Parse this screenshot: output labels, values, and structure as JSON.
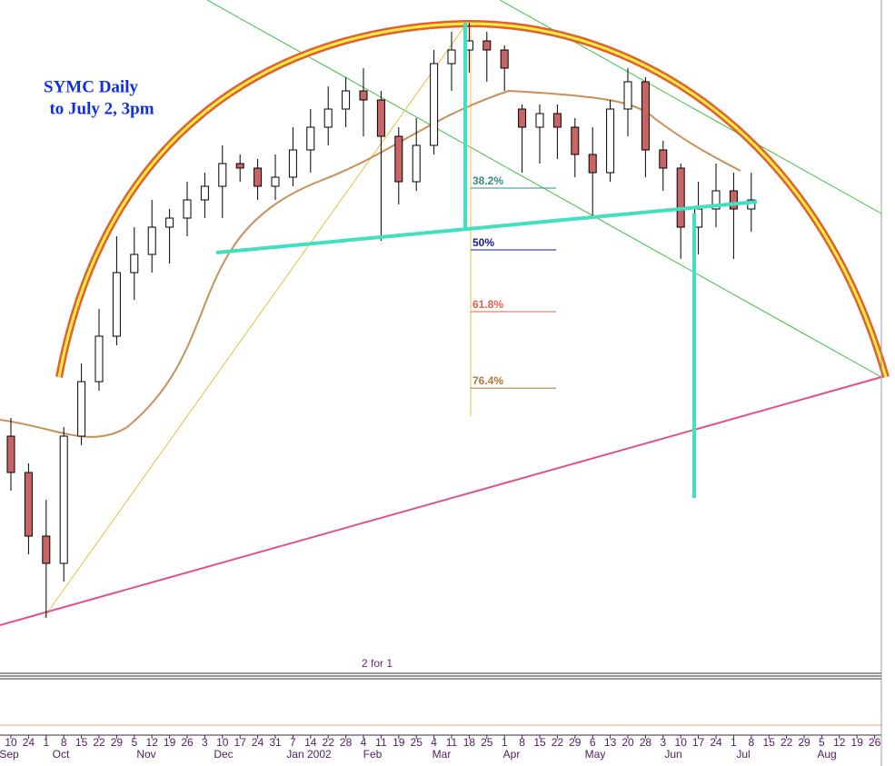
{
  "chart_data": {
    "type": "candlestick",
    "title": "SYMC Daily",
    "subtitle": "to July 2, 3pm",
    "annotation": "2 for 1",
    "ylim": [
      10,
      45
    ],
    "up_color": "#ffffff",
    "down_color": "#c86464",
    "open": [
      21,
      19,
      15.5,
      14,
      21,
      24,
      26.5,
      30,
      31,
      32.5,
      33,
      34,
      34.75,
      36,
      35.75,
      34.75,
      35.25,
      36.75,
      38,
      39,
      40,
      39.5,
      37.5,
      35,
      37,
      41.5,
      42.25,
      42.75,
      42.25,
      39,
      38,
      38.75,
      38,
      36.5,
      35.5,
      39,
      40.5,
      36.75,
      35.75,
      32.5,
      33.5,
      34.5,
      33.5
    ],
    "high": [
      22,
      19.5,
      17.5,
      21.5,
      25,
      28,
      32,
      32.5,
      34,
      33.5,
      35,
      35.5,
      37,
      36.5,
      36.25,
      36.5,
      38,
      39,
      40.25,
      40.75,
      41.25,
      40,
      38,
      38.5,
      42.25,
      43.25,
      43.75,
      43.25,
      42.5,
      39.25,
      39.25,
      39.25,
      38.5,
      38,
      39.5,
      41.25,
      40.75,
      37.25,
      36,
      35,
      36,
      35.5,
      35.5
    ],
    "low": [
      18,
      14.5,
      11,
      13,
      20.5,
      23.5,
      26,
      28.5,
      30,
      30.5,
      32,
      33,
      33,
      35,
      34,
      34,
      34.75,
      35.5,
      37,
      38,
      37.5,
      31.75,
      33.75,
      34.5,
      36.5,
      40,
      41,
      40.5,
      40,
      35.5,
      36,
      36.25,
      35.25,
      33,
      35,
      37.5,
      35.25,
      34.5,
      30.75,
      31,
      32.5,
      30.75,
      32.25
    ],
    "close": [
      19,
      15.5,
      14,
      21,
      24,
      26.5,
      30,
      31,
      32.5,
      33,
      34,
      34.75,
      36,
      35.75,
      34.75,
      35.25,
      36.75,
      38,
      39,
      40,
      39.5,
      37.5,
      35,
      37,
      41.5,
      42.25,
      42.75,
      42.25,
      41.25,
      38,
      38.75,
      38,
      36.5,
      35.5,
      39,
      40.5,
      36.75,
      35.75,
      32.5,
      33.5,
      34.5,
      33.5,
      34
    ],
    "fib_levels": [
      {
        "value": 38.2,
        "label": "38.2%"
      },
      {
        "value": 50,
        "label": "50%"
      },
      {
        "value": 61.8,
        "label": "61.8%"
      },
      {
        "value": 76.4,
        "label": "76.4%"
      }
    ],
    "fib_colors": [
      "#3a8a8a",
      "#1a1a90",
      "#e06050",
      "#b07840"
    ],
    "week_labels": [
      "10",
      "24",
      "1",
      "8",
      "15",
      "22",
      "29",
      "5",
      "12",
      "19",
      "26",
      "3",
      "10",
      "17",
      "24",
      "31",
      "7",
      "14",
      "22",
      "28",
      "4",
      "11",
      "19",
      "25",
      "4",
      "11",
      "18",
      "25",
      "1",
      "8",
      "15",
      "22",
      "29",
      "6",
      "13",
      "20",
      "28",
      "3",
      "10",
      "17",
      "24",
      "1",
      "8",
      "15",
      "22",
      "29",
      "5",
      "12",
      "19",
      "26"
    ],
    "month_labels": [
      "Sep",
      "Oct",
      "Nov",
      "Dec",
      "Jan 2002",
      "Feb",
      "Mar",
      "Apr",
      "May",
      "Jun",
      "Jul",
      "Aug"
    ]
  }
}
